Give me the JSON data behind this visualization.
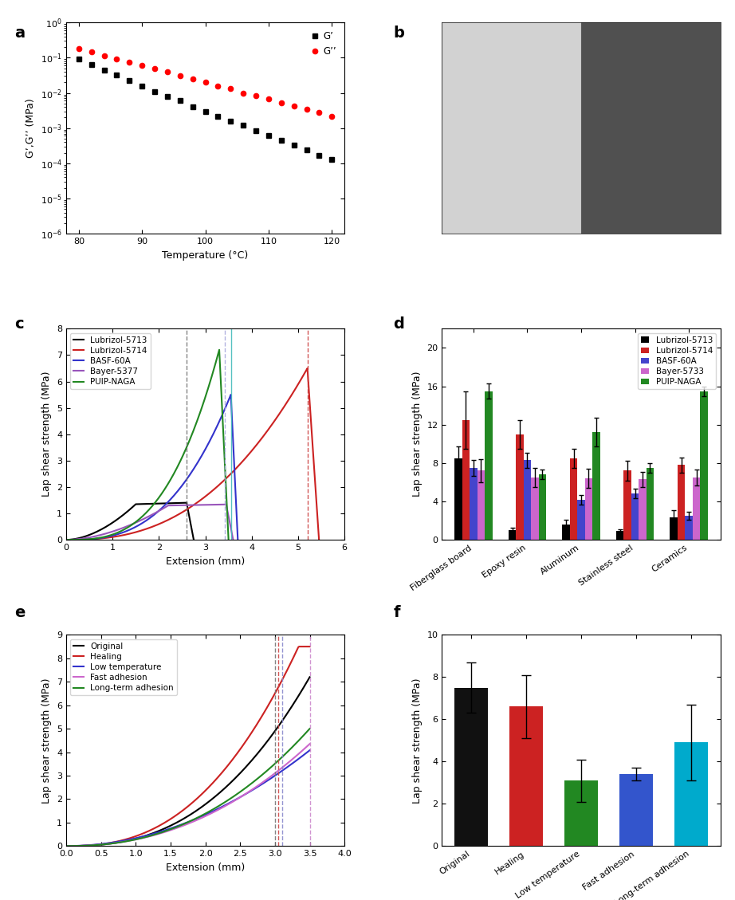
{
  "panel_a": {
    "temp": [
      80,
      82,
      84,
      86,
      88,
      90,
      92,
      94,
      96,
      98,
      100,
      102,
      104,
      106,
      108,
      110,
      112,
      114,
      116,
      118,
      120
    ],
    "G_prime": [
      0.09,
      0.065,
      0.045,
      0.032,
      0.022,
      0.016,
      0.011,
      0.008,
      0.006,
      0.004,
      0.003,
      0.0022,
      0.0016,
      0.0012,
      0.00085,
      0.00062,
      0.00045,
      0.00033,
      0.00024,
      0.00017,
      0.00013
    ],
    "G_double_prime": [
      0.18,
      0.145,
      0.115,
      0.093,
      0.075,
      0.06,
      0.048,
      0.039,
      0.031,
      0.025,
      0.02,
      0.016,
      0.013,
      0.01,
      0.0082,
      0.0066,
      0.0053,
      0.0043,
      0.0034,
      0.0028,
      0.0022
    ],
    "xlabel": "Temperature (°C)",
    "ylabel": "G’,G’’ (MPa)",
    "xlim": [
      78,
      122
    ],
    "xticks": [
      80,
      90,
      100,
      110,
      120
    ],
    "legend_G_prime": "G’",
    "legend_G_double": "G’’"
  },
  "panel_c": {
    "xlabel": "Extension (mm)",
    "ylabel": "Lap shear strength (MPa)",
    "ylim": [
      0,
      8
    ],
    "xlim": [
      0,
      6
    ],
    "xticks": [
      0,
      1,
      2,
      3,
      4,
      5,
      6
    ],
    "yticks": [
      0,
      1,
      2,
      3,
      4,
      5,
      6,
      7,
      8
    ]
  },
  "panel_d": {
    "categories": [
      "Fiberglass board",
      "Epoxy resin",
      "Aluminum",
      "Stainless steel",
      "Ceramics"
    ],
    "series": {
      "Lubrizol-5713": {
        "color": "#000000",
        "values": [
          8.5,
          1.0,
          1.6,
          0.9,
          2.3
        ],
        "errors": [
          1.2,
          0.3,
          0.5,
          0.2,
          0.8
        ]
      },
      "Lubrizol-5714": {
        "color": "#cc2222",
        "values": [
          12.5,
          11.0,
          8.5,
          7.2,
          7.8
        ],
        "errors": [
          3.0,
          1.5,
          1.0,
          1.0,
          0.8
        ]
      },
      "BASF-60A": {
        "color": "#4444cc",
        "values": [
          7.5,
          8.3,
          4.2,
          4.8,
          2.5
        ],
        "errors": [
          0.8,
          0.8,
          0.5,
          0.5,
          0.4
        ]
      },
      "Bayer-5733": {
        "color": "#cc66cc",
        "values": [
          7.2,
          6.5,
          6.4,
          6.3,
          6.5
        ],
        "errors": [
          1.2,
          1.0,
          1.0,
          0.8,
          0.8
        ]
      },
      "PUIP-NAGA": {
        "color": "#228822",
        "values": [
          15.5,
          6.8,
          11.2,
          7.5,
          15.5
        ],
        "errors": [
          0.8,
          0.5,
          1.5,
          0.5,
          0.5
        ]
      }
    },
    "ylabel": "Lap shear strength (MPa)",
    "ylim": [
      0,
      22
    ],
    "yticks": [
      0,
      2,
      4,
      6,
      8,
      10,
      12,
      14,
      16,
      18,
      20,
      22
    ]
  },
  "panel_e": {
    "xlabel": "Extension (mm)",
    "ylabel": "Lap shear strength (MPa)",
    "ylim": [
      0,
      9
    ],
    "xlim": [
      0,
      4
    ],
    "xticks": [
      0.0,
      0.5,
      1.0,
      1.5,
      2.0,
      2.5,
      3.0,
      3.5,
      4.0
    ],
    "yticks": [
      0,
      1,
      2,
      3,
      4,
      5,
      6,
      7,
      8,
      9
    ]
  },
  "panel_f": {
    "categories": [
      "Original",
      "Healing",
      "Low temperature",
      "Fast adhesion",
      "Long-term adhesion"
    ],
    "values": [
      7.5,
      6.6,
      3.1,
      3.4,
      4.9
    ],
    "errors": [
      1.2,
      1.5,
      1.0,
      0.3,
      1.8
    ],
    "colors": [
      "#111111",
      "#cc2222",
      "#228822",
      "#3355cc",
      "#00aacc"
    ],
    "ylabel": "Lap shear strength (MPa)",
    "ylim": [
      0,
      10
    ],
    "yticks": [
      0,
      2,
      4,
      6,
      8,
      10
    ]
  }
}
